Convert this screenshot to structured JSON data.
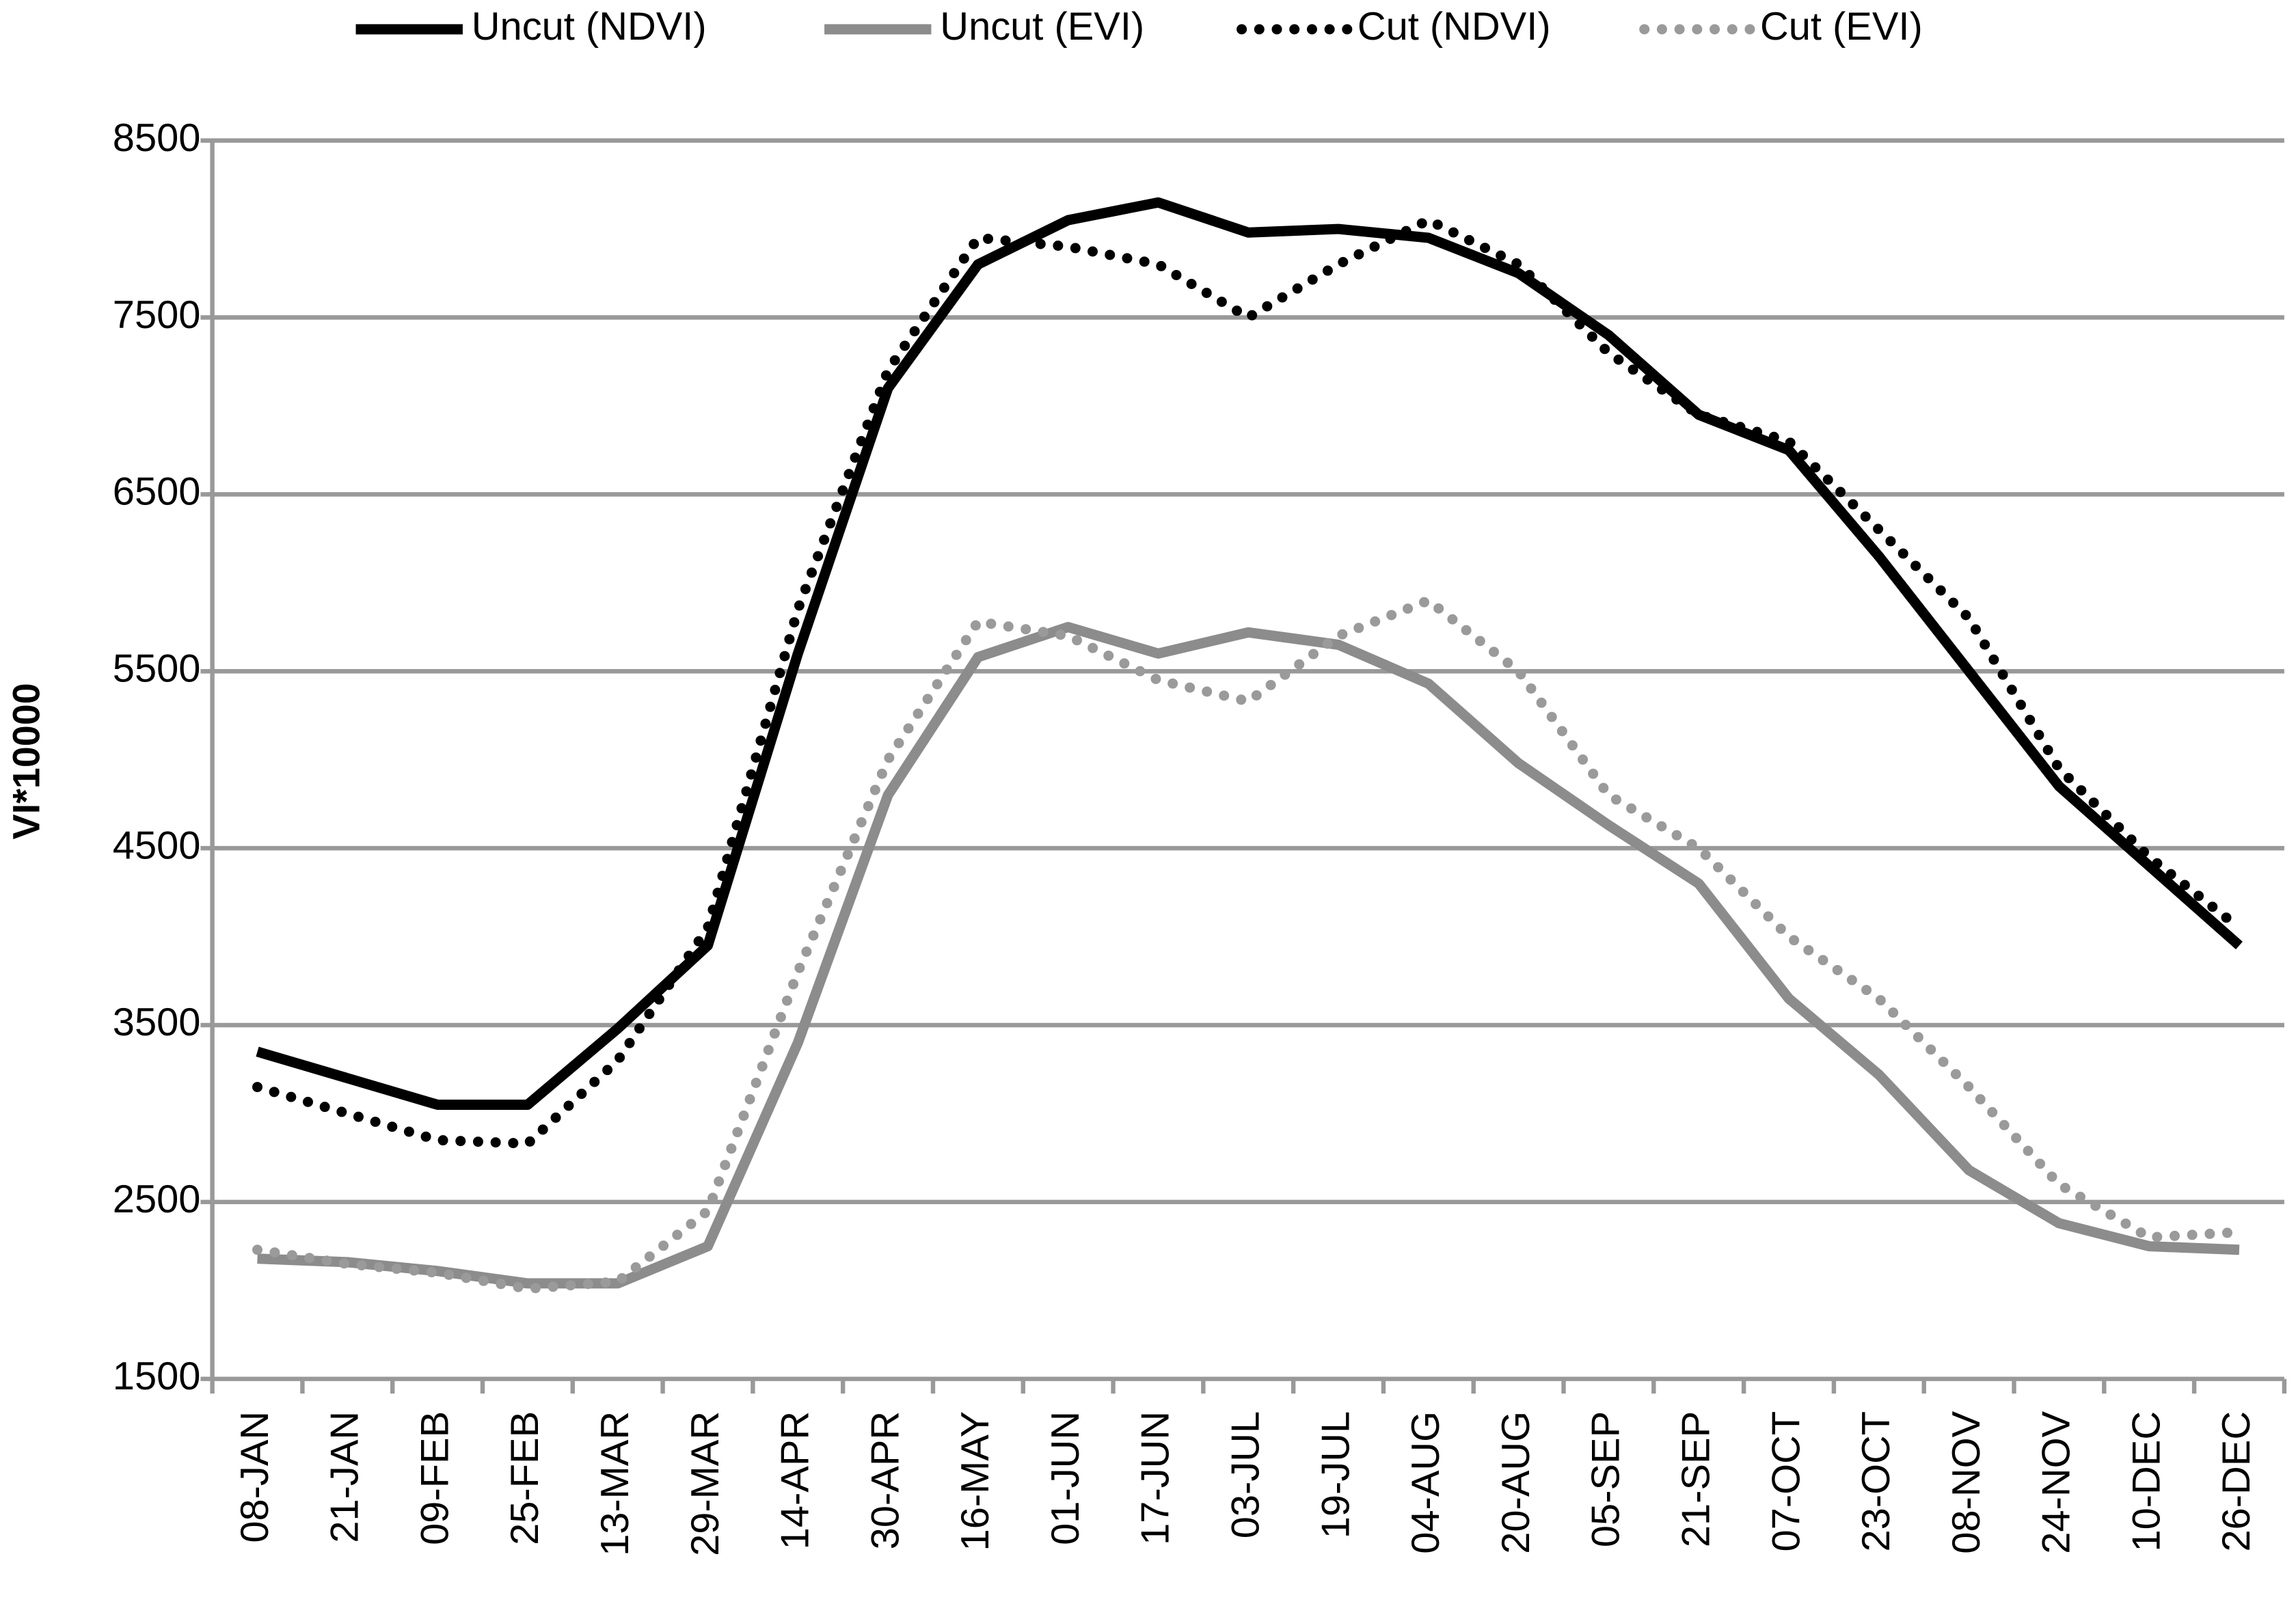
{
  "chart_data": {
    "type": "line",
    "y_label": "VI*10000",
    "categories": [
      "08-JAN",
      "21-JAN",
      "09-FEB",
      "25-FEB",
      "13-MAR",
      "29-MAR",
      "14-APR",
      "30-APR",
      "16-MAY",
      "01-JUN",
      "17-JUN",
      "03-JUL",
      "19-JUL",
      "04-AUG",
      "20-AUG",
      "05-SEP",
      "21-SEP",
      "07-OCT",
      "23-OCT",
      "08-NOV",
      "24-NOV",
      "10-DEC",
      "26-DEC"
    ],
    "series": [
      {
        "name": "Uncut (NDVI)",
        "color": "#000000",
        "style": "solid",
        "values": [
          3350,
          3200,
          3050,
          3050,
          3480,
          3950,
          5600,
          7100,
          7800,
          8050,
          8150,
          7980,
          8000,
          7950,
          7750,
          7400,
          6950,
          6750,
          6150,
          5500,
          4850,
          4400,
          3950
        ]
      },
      {
        "name": "Uncut (EVI)",
        "color": "#8c8c8c",
        "style": "solid",
        "values": [
          2180,
          2160,
          2110,
          2040,
          2040,
          2250,
          3400,
          4800,
          5580,
          5750,
          5600,
          5720,
          5650,
          5430,
          4980,
          4630,
          4300,
          3650,
          3220,
          2680,
          2380,
          2250,
          2230
        ]
      },
      {
        "name": "Cut (NDVI)",
        "color": "#000000",
        "style": "dotted",
        "values": [
          3150,
          3000,
          2850,
          2830,
          3300,
          4050,
          5850,
          7200,
          7950,
          7900,
          7800,
          7500,
          7800,
          8050,
          7800,
          7300,
          6950,
          6800,
          6300,
          5800,
          4950,
          4450,
          4050
        ]
      },
      {
        "name": "Cut (EVI)",
        "color": "#9a9a9a",
        "style": "dotted",
        "values": [
          2230,
          2150,
          2100,
          2010,
          2050,
          2450,
          3800,
          5000,
          5780,
          5700,
          5450,
          5330,
          5700,
          5900,
          5500,
          4800,
          4500,
          4000,
          3650,
          3150,
          2600,
          2300,
          2330
        ]
      }
    ],
    "ylim": [
      1500,
      8500
    ],
    "yticks": [
      1500,
      2500,
      3500,
      4500,
      5500,
      6500,
      7500,
      8500
    ],
    "grid": true
  }
}
